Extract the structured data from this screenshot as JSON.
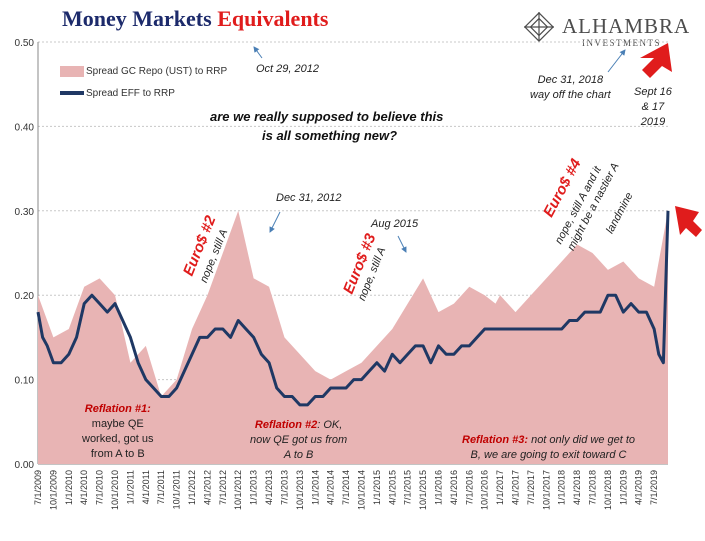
{
  "header": {
    "title_part1": "Money Markets",
    "title_part2": "Equivalents",
    "logo_name": "ALHAMBRA",
    "logo_sub": "INVESTMENTS"
  },
  "colors": {
    "title_navy": "#1c2a6b",
    "title_red": "#e01c1c",
    "area": "#e8b4b4",
    "line": "#1f3864",
    "annotation_red": "#c00000"
  },
  "chart_data": {
    "type": "area",
    "title": "Money Markets Equivalents",
    "ylim": [
      0,
      0.5
    ],
    "y_ticks": [
      "0.00",
      "0.10",
      "0.20",
      "0.30",
      "0.40",
      "0.50"
    ],
    "grid": true,
    "legend_placement": "top-left",
    "x_tick_labels": [
      "7/1/2009",
      "10/1/2009",
      "1/1/2010",
      "4/1/2010",
      "7/1/2010",
      "10/1/2010",
      "1/1/2011",
      "4/1/2011",
      "7/1/2011",
      "10/1/2011",
      "1/1/2012",
      "4/1/2012",
      "7/1/2012",
      "10/1/2012",
      "1/1/2013",
      "4/1/2013",
      "7/1/2013",
      "10/1/2013",
      "1/1/2014",
      "4/1/2014",
      "7/1/2014",
      "10/1/2014",
      "1/1/2015",
      "4/1/2015",
      "7/1/2015",
      "10/1/2015",
      "1/1/2016",
      "4/1/2016",
      "7/1/2016",
      "10/1/2016",
      "1/1/2017",
      "4/1/2017",
      "7/1/2017",
      "10/1/2017",
      "1/1/2018",
      "4/1/2018",
      "7/1/2018",
      "10/1/2018",
      "1/1/2019",
      "4/1/2019",
      "7/1/2019"
    ],
    "series": [
      {
        "name": "Spread GC Repo (UST) to RRP",
        "kind": "area",
        "x_index": [
          0,
          1,
          2,
          3,
          4,
          5,
          6,
          7,
          8,
          9,
          10,
          11,
          12,
          13,
          14,
          15,
          16,
          17,
          18,
          19,
          20,
          21,
          22,
          23,
          24,
          25,
          26,
          27,
          28,
          29,
          29.7,
          30,
          31,
          32,
          33,
          34,
          35,
          36,
          37,
          38,
          39,
          40,
          40.9
        ],
        "values": [
          0.2,
          0.15,
          0.16,
          0.21,
          0.22,
          0.2,
          0.12,
          0.14,
          0.08,
          0.1,
          0.16,
          0.2,
          0.25,
          0.3,
          0.22,
          0.21,
          0.15,
          0.13,
          0.11,
          0.1,
          0.11,
          0.12,
          0.14,
          0.16,
          0.19,
          0.22,
          0.18,
          0.19,
          0.21,
          0.2,
          0.19,
          0.2,
          0.18,
          0.2,
          0.22,
          0.24,
          0.26,
          0.25,
          0.23,
          0.24,
          0.22,
          0.21,
          0.3
        ]
      },
      {
        "name": "Spread EFF to RRP",
        "kind": "line",
        "x_index": [
          0,
          0.3,
          0.6,
          1,
          1.5,
          2,
          2.5,
          3,
          3.5,
          4,
          4.5,
          5,
          5.5,
          6,
          6.5,
          7,
          7.5,
          8,
          8.5,
          9,
          9.5,
          10,
          10.5,
          11,
          11.5,
          12,
          12.5,
          13,
          13.5,
          14,
          14.5,
          15,
          15.5,
          16,
          16.5,
          17,
          17.5,
          18,
          18.5,
          19,
          19.5,
          20,
          20.5,
          21,
          21.5,
          22,
          22.5,
          23,
          23.5,
          24,
          24.5,
          25,
          25.5,
          26,
          26.5,
          27,
          27.5,
          28,
          28.5,
          29,
          29.5,
          30,
          30.5,
          31,
          31.5,
          32,
          32.5,
          33,
          33.5,
          34,
          34.5,
          35,
          35.5,
          36,
          36.5,
          37,
          37.5,
          38,
          38.5,
          39,
          39.5,
          40,
          40.3,
          40.6,
          40.9
        ],
        "values": [
          0.18,
          0.15,
          0.14,
          0.12,
          0.12,
          0.13,
          0.15,
          0.19,
          0.2,
          0.19,
          0.18,
          0.19,
          0.17,
          0.15,
          0.12,
          0.1,
          0.09,
          0.08,
          0.08,
          0.09,
          0.11,
          0.13,
          0.15,
          0.15,
          0.16,
          0.16,
          0.15,
          0.17,
          0.16,
          0.15,
          0.13,
          0.12,
          0.09,
          0.08,
          0.08,
          0.07,
          0.07,
          0.08,
          0.08,
          0.09,
          0.09,
          0.09,
          0.1,
          0.1,
          0.11,
          0.12,
          0.11,
          0.13,
          0.12,
          0.13,
          0.14,
          0.14,
          0.12,
          0.14,
          0.13,
          0.13,
          0.14,
          0.14,
          0.15,
          0.16,
          0.16,
          0.16,
          0.16,
          0.16,
          0.16,
          0.16,
          0.16,
          0.16,
          0.16,
          0.16,
          0.17,
          0.17,
          0.18,
          0.18,
          0.18,
          0.2,
          0.2,
          0.18,
          0.19,
          0.18,
          0.18,
          0.16,
          0.13,
          0.12,
          0.3
        ]
      }
    ],
    "annotations": {
      "oct29_2012": "Oct 29, 2012",
      "question_line1": "are we really supposed to believe this",
      "question_line2": "is all something new?",
      "dec31_2012": "Dec 31, 2012",
      "aug2015": "Aug 2015",
      "dec31_2018_line1": "Dec 31, 2018",
      "dec31_2018_line2": "way off the chart",
      "sept_line1": "Sept 16",
      "sept_line2": "& 17",
      "sept_line3": "2019",
      "euro2_title": "Euro$ #2",
      "euro2_sub": "nope, still A",
      "euro3_title": "Euro$ #3",
      "euro3_sub": "nope, still A",
      "euro4_title": "Euro$ #4",
      "euro4_sub1": "nope, still A and it",
      "euro4_sub2": "might be a nastier A",
      "euro4_sub3": "landmine",
      "refl1_title": "Reflation #1:",
      "refl1_l1": "maybe QE",
      "refl1_l2": "worked, got us",
      "refl1_l3": "from A to B",
      "refl2_title": "Reflation #2",
      "refl2_l1": ": OK,",
      "refl2_l2": "now QE got us from",
      "refl2_l3": "A to B",
      "refl3_title": "Reflation #3:",
      "refl3_l1": " not only did we get to",
      "refl3_l2": "B, we are going to exit toward C"
    }
  }
}
